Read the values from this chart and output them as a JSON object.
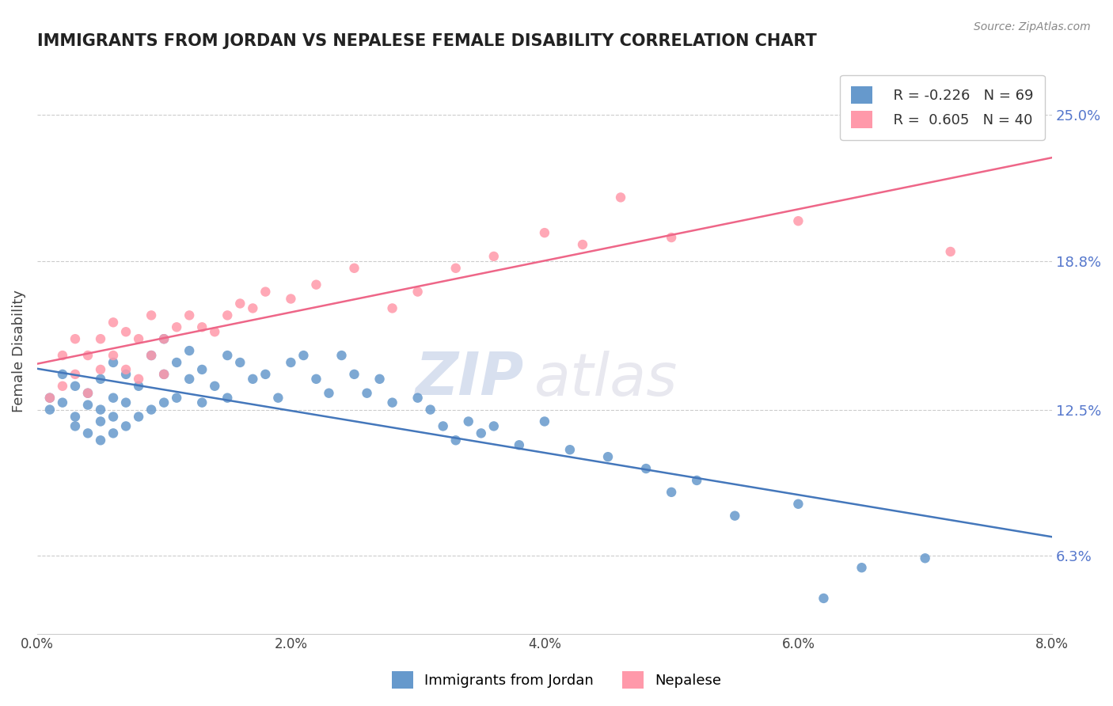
{
  "title": "IMMIGRANTS FROM JORDAN VS NEPALESE FEMALE DISABILITY CORRELATION CHART",
  "source": "Source: ZipAtlas.com",
  "ylabel": "Female Disability",
  "xlabel_blue": "Immigrants from Jordan",
  "xlabel_pink": "Nepalese",
  "legend_blue_r": "R = -0.226",
  "legend_blue_n": "N = 69",
  "legend_pink_r": "R =  0.605",
  "legend_pink_n": "N = 40",
  "xlim": [
    0.0,
    0.08
  ],
  "ylim": [
    0.03,
    0.27
  ],
  "yticks": [
    0.063,
    0.125,
    0.188,
    0.25
  ],
  "ytick_labels": [
    "6.3%",
    "12.5%",
    "18.8%",
    "25.0%"
  ],
  "xticks": [
    0.0,
    0.02,
    0.04,
    0.06,
    0.08
  ],
  "xtick_labels": [
    "0.0%",
    "2.0%",
    "4.0%",
    "6.0%",
    "8.0%"
  ],
  "color_blue": "#6699CC",
  "color_pink": "#FF99AA",
  "trendline_blue": "#4477BB",
  "trendline_pink": "#EE6688",
  "watermark_zip": "ZIP",
  "watermark_atlas": "atlas",
  "background_color": "#FFFFFF",
  "blue_scatter_x": [
    0.001,
    0.001,
    0.002,
    0.002,
    0.003,
    0.003,
    0.003,
    0.004,
    0.004,
    0.004,
    0.005,
    0.005,
    0.005,
    0.005,
    0.006,
    0.006,
    0.006,
    0.006,
    0.007,
    0.007,
    0.007,
    0.008,
    0.008,
    0.009,
    0.009,
    0.01,
    0.01,
    0.01,
    0.011,
    0.011,
    0.012,
    0.012,
    0.013,
    0.013,
    0.014,
    0.015,
    0.015,
    0.016,
    0.017,
    0.018,
    0.019,
    0.02,
    0.021,
    0.022,
    0.023,
    0.024,
    0.025,
    0.026,
    0.027,
    0.028,
    0.03,
    0.031,
    0.032,
    0.033,
    0.034,
    0.035,
    0.036,
    0.038,
    0.04,
    0.042,
    0.045,
    0.048,
    0.05,
    0.052,
    0.055,
    0.06,
    0.062,
    0.065,
    0.07
  ],
  "blue_scatter_y": [
    0.13,
    0.125,
    0.14,
    0.128,
    0.135,
    0.122,
    0.118,
    0.132,
    0.127,
    0.115,
    0.138,
    0.125,
    0.12,
    0.112,
    0.145,
    0.13,
    0.122,
    0.115,
    0.14,
    0.128,
    0.118,
    0.135,
    0.122,
    0.148,
    0.125,
    0.155,
    0.14,
    0.128,
    0.145,
    0.13,
    0.15,
    0.138,
    0.142,
    0.128,
    0.135,
    0.148,
    0.13,
    0.145,
    0.138,
    0.14,
    0.13,
    0.145,
    0.148,
    0.138,
    0.132,
    0.148,
    0.14,
    0.132,
    0.138,
    0.128,
    0.13,
    0.125,
    0.118,
    0.112,
    0.12,
    0.115,
    0.118,
    0.11,
    0.12,
    0.108,
    0.105,
    0.1,
    0.09,
    0.095,
    0.08,
    0.085,
    0.045,
    0.058,
    0.062
  ],
  "pink_scatter_x": [
    0.001,
    0.002,
    0.002,
    0.003,
    0.003,
    0.004,
    0.004,
    0.005,
    0.005,
    0.006,
    0.006,
    0.007,
    0.007,
    0.008,
    0.008,
    0.009,
    0.009,
    0.01,
    0.01,
    0.011,
    0.012,
    0.013,
    0.014,
    0.015,
    0.016,
    0.017,
    0.018,
    0.02,
    0.022,
    0.025,
    0.028,
    0.03,
    0.033,
    0.036,
    0.04,
    0.043,
    0.046,
    0.05,
    0.06,
    0.072
  ],
  "pink_scatter_y": [
    0.13,
    0.148,
    0.135,
    0.155,
    0.14,
    0.148,
    0.132,
    0.155,
    0.142,
    0.162,
    0.148,
    0.158,
    0.142,
    0.155,
    0.138,
    0.165,
    0.148,
    0.155,
    0.14,
    0.16,
    0.165,
    0.16,
    0.158,
    0.165,
    0.17,
    0.168,
    0.175,
    0.172,
    0.178,
    0.185,
    0.168,
    0.175,
    0.185,
    0.19,
    0.2,
    0.195,
    0.215,
    0.198,
    0.205,
    0.192
  ]
}
